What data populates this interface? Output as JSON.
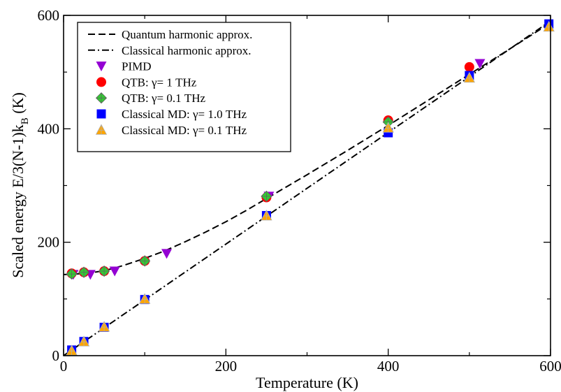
{
  "chart_data": {
    "type": "scatter",
    "title": "",
    "xlabel": "Temperature (K)",
    "ylabel": "Scaled energy E/3(N-1)k",
    "ylabel_subscript": "B",
    "ylabel_suffix": " (K)",
    "xlim": [
      0,
      600
    ],
    "ylim": [
      0,
      600
    ],
    "xticks": [
      0,
      200,
      400,
      600
    ],
    "yticks": [
      0,
      200,
      400,
      600
    ],
    "grid": false,
    "legend_position": "top-left",
    "lines": [
      {
        "name": "Quantum harmonic approx.",
        "style": "dashed",
        "color": "#000000",
        "points": [
          [
            0,
            143
          ],
          [
            10,
            143.4
          ],
          [
            20,
            144.4
          ],
          [
            30,
            145.8
          ],
          [
            40,
            147.6
          ],
          [
            50,
            150
          ],
          [
            60,
            153.5
          ],
          [
            70,
            157.5
          ],
          [
            80,
            162
          ],
          [
            100,
            171.5
          ],
          [
            125,
            185
          ],
          [
            150,
            201
          ],
          [
            175,
            218
          ],
          [
            200,
            236
          ],
          [
            225,
            256
          ],
          [
            250,
            277
          ],
          [
            275,
            298
          ],
          [
            300,
            319
          ],
          [
            350,
            362
          ],
          [
            400,
            406
          ],
          [
            450,
            451
          ],
          [
            500,
            496
          ],
          [
            550,
            541
          ],
          [
            600,
            587
          ],
          [
            610,
            596
          ]
        ]
      },
      {
        "name": "Classical harmonic approx.",
        "style": "dash-dot",
        "color": "#000000",
        "points": [
          [
            0,
            0
          ],
          [
            610,
            600
          ]
        ]
      }
    ],
    "series": [
      {
        "name": "PIMD",
        "marker": "triangle-down",
        "color": "#9400d3",
        "x": [
          12,
          33,
          63,
          127,
          253,
          513
        ],
        "y": [
          143,
          143,
          149,
          180,
          281,
          515
        ]
      },
      {
        "name": "QTB: γ= 1 THz",
        "marker": "circle",
        "color": "#ff0000",
        "x": [
          10,
          25,
          50,
          100,
          250,
          400,
          500
        ],
        "y": [
          145,
          147,
          149,
          167,
          279,
          415,
          509
        ]
      },
      {
        "name": "QTB: γ= 0.1 THz",
        "marker": "diamond-plus",
        "color": "#32cd32",
        "x": [
          10,
          25,
          50,
          100,
          250,
          400
        ],
        "y": [
          144,
          147,
          149,
          167,
          281,
          412
        ]
      },
      {
        "name": "Classical MD: γ= 1.0 THz",
        "marker": "square",
        "color": "#0000ff",
        "x": [
          10,
          25,
          50,
          100,
          250,
          400,
          500,
          598
        ],
        "y": [
          10,
          25,
          50,
          99,
          247,
          393,
          494,
          585
        ]
      },
      {
        "name": "Classical MD: γ= 0.1 THz",
        "marker": "triangle-up",
        "color": "#ffa500",
        "x": [
          10,
          25,
          50,
          100,
          250,
          400,
          500,
          598
        ],
        "y": [
          9,
          25,
          51,
          100,
          247,
          402,
          490,
          580
        ]
      }
    ]
  }
}
